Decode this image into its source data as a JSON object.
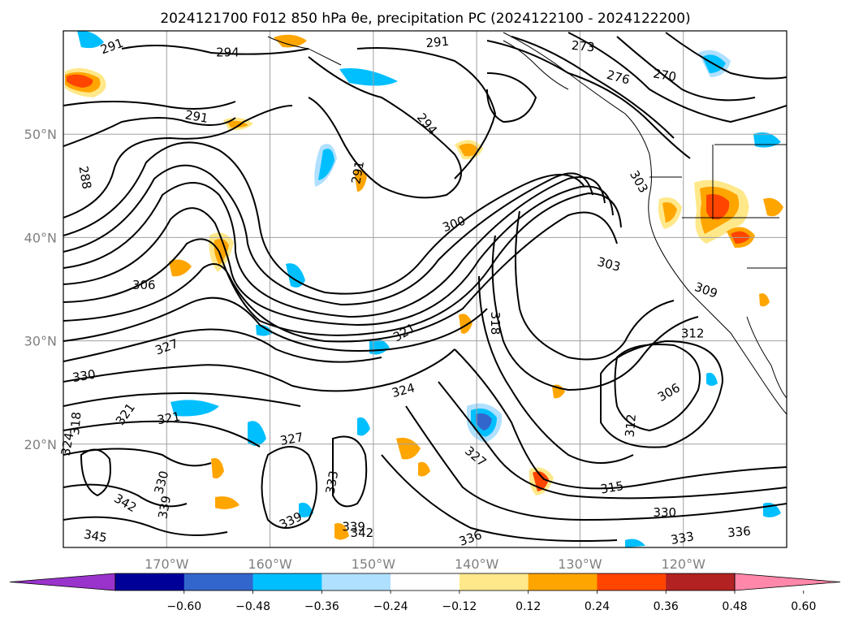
{
  "title": "2024121700 F012 850 hPa θe, precipitation PC (2024122100 - 2024122200)",
  "map": {
    "lon_range": [
      -180,
      -110
    ],
    "lat_range": [
      10,
      60
    ],
    "lon_ticks": [
      {
        "value": -170,
        "label": "170°W"
      },
      {
        "value": -160,
        "label": "160°W"
      },
      {
        "value": -150,
        "label": "150°W"
      },
      {
        "value": -140,
        "label": "140°W"
      },
      {
        "value": -130,
        "label": "130°W"
      },
      {
        "value": -120,
        "label": "120°W"
      }
    ],
    "lat_ticks": [
      {
        "value": 20,
        "label": "20°N"
      },
      {
        "value": 30,
        "label": "30°N"
      },
      {
        "value": 40,
        "label": "40°N"
      },
      {
        "value": 50,
        "label": "50°N"
      }
    ],
    "gridlines": true
  },
  "colorbar": {
    "ticks": [
      "−0.60",
      "−0.48",
      "−0.36",
      "−0.24",
      "−0.12",
      "0.12",
      "0.24",
      "0.36",
      "0.48",
      "0.60"
    ],
    "colors": [
      "#9933cc",
      "#000099",
      "#3366cc",
      "#00bfff",
      "#b0e0ff",
      "#ffffff",
      "#ffe88a",
      "#ffa500",
      "#ff4500",
      "#b22222",
      "#ff88aa"
    ]
  },
  "contour_labels": [
    {
      "text": "291",
      "lon": -175.3,
      "lat": 58.5,
      "rot": -20
    },
    {
      "text": "294",
      "lon": -164.1,
      "lat": 57.9,
      "rot": 0
    },
    {
      "text": "291",
      "lon": -143.8,
      "lat": 58.9,
      "rot": -5
    },
    {
      "text": "273",
      "lon": -129.7,
      "lat": 58.5,
      "rot": 5
    },
    {
      "text": "276",
      "lon": -126.3,
      "lat": 55.5,
      "rot": 15
    },
    {
      "text": "270",
      "lon": -121.8,
      "lat": 55.7,
      "rot": 10
    },
    {
      "text": "291",
      "lon": -167.1,
      "lat": 51.7,
      "rot": 10
    },
    {
      "text": "294",
      "lon": -144.8,
      "lat": 51.0,
      "rot": 50
    },
    {
      "text": "288",
      "lon": -177.9,
      "lat": 45.8,
      "rot": 80
    },
    {
      "text": "291",
      "lon": -151.5,
      "lat": 46.3,
      "rot": -80
    },
    {
      "text": "303",
      "lon": -124.3,
      "lat": 45.4,
      "rot": 60
    },
    {
      "text": "300",
      "lon": -142.2,
      "lat": 41.3,
      "rot": -20
    },
    {
      "text": "303",
      "lon": -127.2,
      "lat": 37.4,
      "rot": 15
    },
    {
      "text": "306",
      "lon": -172.2,
      "lat": 35.4,
      "rot": 0
    },
    {
      "text": "309",
      "lon": -117.8,
      "lat": 34.9,
      "rot": 20
    },
    {
      "text": "318",
      "lon": -138.2,
      "lat": 31.7,
      "rot": 90
    },
    {
      "text": "321",
      "lon": -147.0,
      "lat": 30.8,
      "rot": -30
    },
    {
      "text": "312",
      "lon": -119.1,
      "lat": 30.7,
      "rot": 0
    },
    {
      "text": "327",
      "lon": -170.0,
      "lat": 29.4,
      "rot": -20
    },
    {
      "text": "330",
      "lon": -178.0,
      "lat": 26.6,
      "rot": -10
    },
    {
      "text": "324",
      "lon": -147.1,
      "lat": 25.2,
      "rot": -15
    },
    {
      "text": "306",
      "lon": -121.4,
      "lat": 25.0,
      "rot": -30
    },
    {
      "text": "321",
      "lon": -174.0,
      "lat": 22.9,
      "rot": -55
    },
    {
      "text": "321",
      "lon": -169.8,
      "lat": 22.5,
      "rot": -10
    },
    {
      "text": "318",
      "lon": -178.8,
      "lat": 22.0,
      "rot": -85
    },
    {
      "text": "312",
      "lon": -125.1,
      "lat": 21.8,
      "rot": -85
    },
    {
      "text": "324",
      "lon": -179.6,
      "lat": 20.0,
      "rot": -80
    },
    {
      "text": "327",
      "lon": -157.9,
      "lat": 20.5,
      "rot": -10
    },
    {
      "text": "327",
      "lon": -140.1,
      "lat": 18.8,
      "rot": 40
    },
    {
      "text": "330",
      "lon": -170.5,
      "lat": 16.3,
      "rot": -75
    },
    {
      "text": "333",
      "lon": -154.0,
      "lat": 16.3,
      "rot": -80
    },
    {
      "text": "315",
      "lon": -126.9,
      "lat": 15.8,
      "rot": -10
    },
    {
      "text": "342",
      "lon": -174.0,
      "lat": 14.3,
      "rot": 30
    },
    {
      "text": "339",
      "lon": -170.2,
      "lat": 13.9,
      "rot": -80
    },
    {
      "text": "339",
      "lon": -158.0,
      "lat": 12.6,
      "rot": -25
    },
    {
      "text": "330",
      "lon": -121.8,
      "lat": 13.4,
      "rot": 0
    },
    {
      "text": "339",
      "lon": -151.9,
      "lat": 12.0,
      "rot": 0
    },
    {
      "text": "342",
      "lon": -151.1,
      "lat": 11.4,
      "rot": 0
    },
    {
      "text": "345",
      "lon": -176.9,
      "lat": 11.1,
      "rot": 10
    },
    {
      "text": "336",
      "lon": -140.6,
      "lat": 10.9,
      "rot": -20
    },
    {
      "text": "333",
      "lon": -120.1,
      "lat": 10.9,
      "rot": -10
    },
    {
      "text": "336",
      "lon": -114.6,
      "lat": 11.5,
      "rot": -5
    }
  ]
}
